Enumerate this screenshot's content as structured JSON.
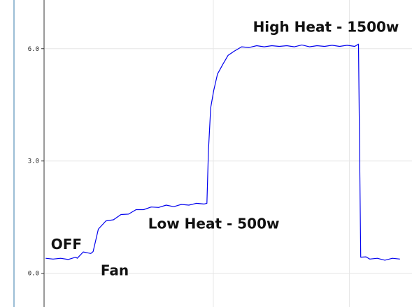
{
  "chart_data": {
    "type": "line",
    "title": "",
    "xlabel": "",
    "ylabel": "",
    "ylim": [
      -0.9,
      7.3
    ],
    "y_ticks": [
      0.0,
      3.0,
      6.0
    ],
    "y_tick_labels": [
      "0.0",
      "3.0",
      "6.0"
    ],
    "grid": true,
    "series": [
      {
        "color": "#0000ee",
        "x": [
          0,
          1,
          2,
          3,
          4,
          4.2,
          5,
          6,
          6.3,
          7,
          8,
          9,
          10,
          11,
          12,
          13,
          14,
          15,
          16,
          17,
          18,
          19,
          20,
          21,
          21.4,
          21.6,
          21.9,
          22.3,
          22.8,
          23.5,
          24.2,
          25,
          26,
          27,
          28,
          29,
          30,
          31,
          32,
          33,
          34,
          35,
          36,
          37,
          38,
          39,
          40,
          41,
          41.5,
          41.8,
          42.5,
          43,
          44,
          45,
          46,
          47
        ],
        "values": [
          0.38,
          0.4,
          0.38,
          0.39,
          0.41,
          0.42,
          0.55,
          0.55,
          0.56,
          1.2,
          1.38,
          1.45,
          1.55,
          1.6,
          1.68,
          1.72,
          1.75,
          1.78,
          1.8,
          1.8,
          1.82,
          1.84,
          1.85,
          1.87,
          1.85,
          3.3,
          4.4,
          4.9,
          5.3,
          5.6,
          5.8,
          5.95,
          6.03,
          6.05,
          6.06,
          6.07,
          6.06,
          6.08,
          6.06,
          6.07,
          6.08,
          6.07,
          6.06,
          6.08,
          6.07,
          6.08,
          6.07,
          6.08,
          6.1,
          0.45,
          0.42,
          0.4,
          0.38,
          0.37,
          0.38,
          0.4
        ]
      }
    ],
    "annotations": [
      {
        "text": "OFF",
        "x": 0.7,
        "y": 0.65
      },
      {
        "text": "Fan",
        "x": 7.3,
        "y": -0.05
      },
      {
        "text": "Low Heat - 500w",
        "x": 13.6,
        "y": 1.2
      },
      {
        "text": "High Heat - 1500w",
        "x": 27.5,
        "y": 6.45
      }
    ],
    "xlim": [
      -0.2,
      48.6
    ]
  }
}
